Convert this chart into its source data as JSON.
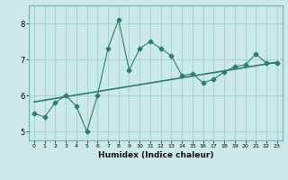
{
  "x": [
    0,
    1,
    2,
    3,
    4,
    5,
    6,
    7,
    8,
    9,
    10,
    11,
    12,
    13,
    14,
    15,
    16,
    17,
    18,
    19,
    20,
    21,
    22,
    23
  ],
  "y_line": [
    5.5,
    5.4,
    5.8,
    6.0,
    5.7,
    5.0,
    6.0,
    7.3,
    8.1,
    6.7,
    7.3,
    7.5,
    7.3,
    7.1,
    6.55,
    6.6,
    6.35,
    6.45,
    6.65,
    6.8,
    6.85,
    7.15,
    6.9,
    6.9
  ],
  "trend_x": [
    0,
    23
  ],
  "trend_y": [
    5.82,
    6.92
  ],
  "line_color": "#2e7d6e",
  "bg_color": "#cce9e9",
  "grid_color": "#aad4d4",
  "xlabel": "Humidex (Indice chaleur)",
  "ylim": [
    4.75,
    8.5
  ],
  "xlim": [
    -0.5,
    23.5
  ],
  "yticks": [
    5,
    6,
    7,
    8
  ],
  "xticks": [
    0,
    1,
    2,
    3,
    4,
    5,
    6,
    7,
    8,
    9,
    10,
    11,
    12,
    13,
    14,
    15,
    16,
    17,
    18,
    19,
    20,
    21,
    22,
    23
  ]
}
